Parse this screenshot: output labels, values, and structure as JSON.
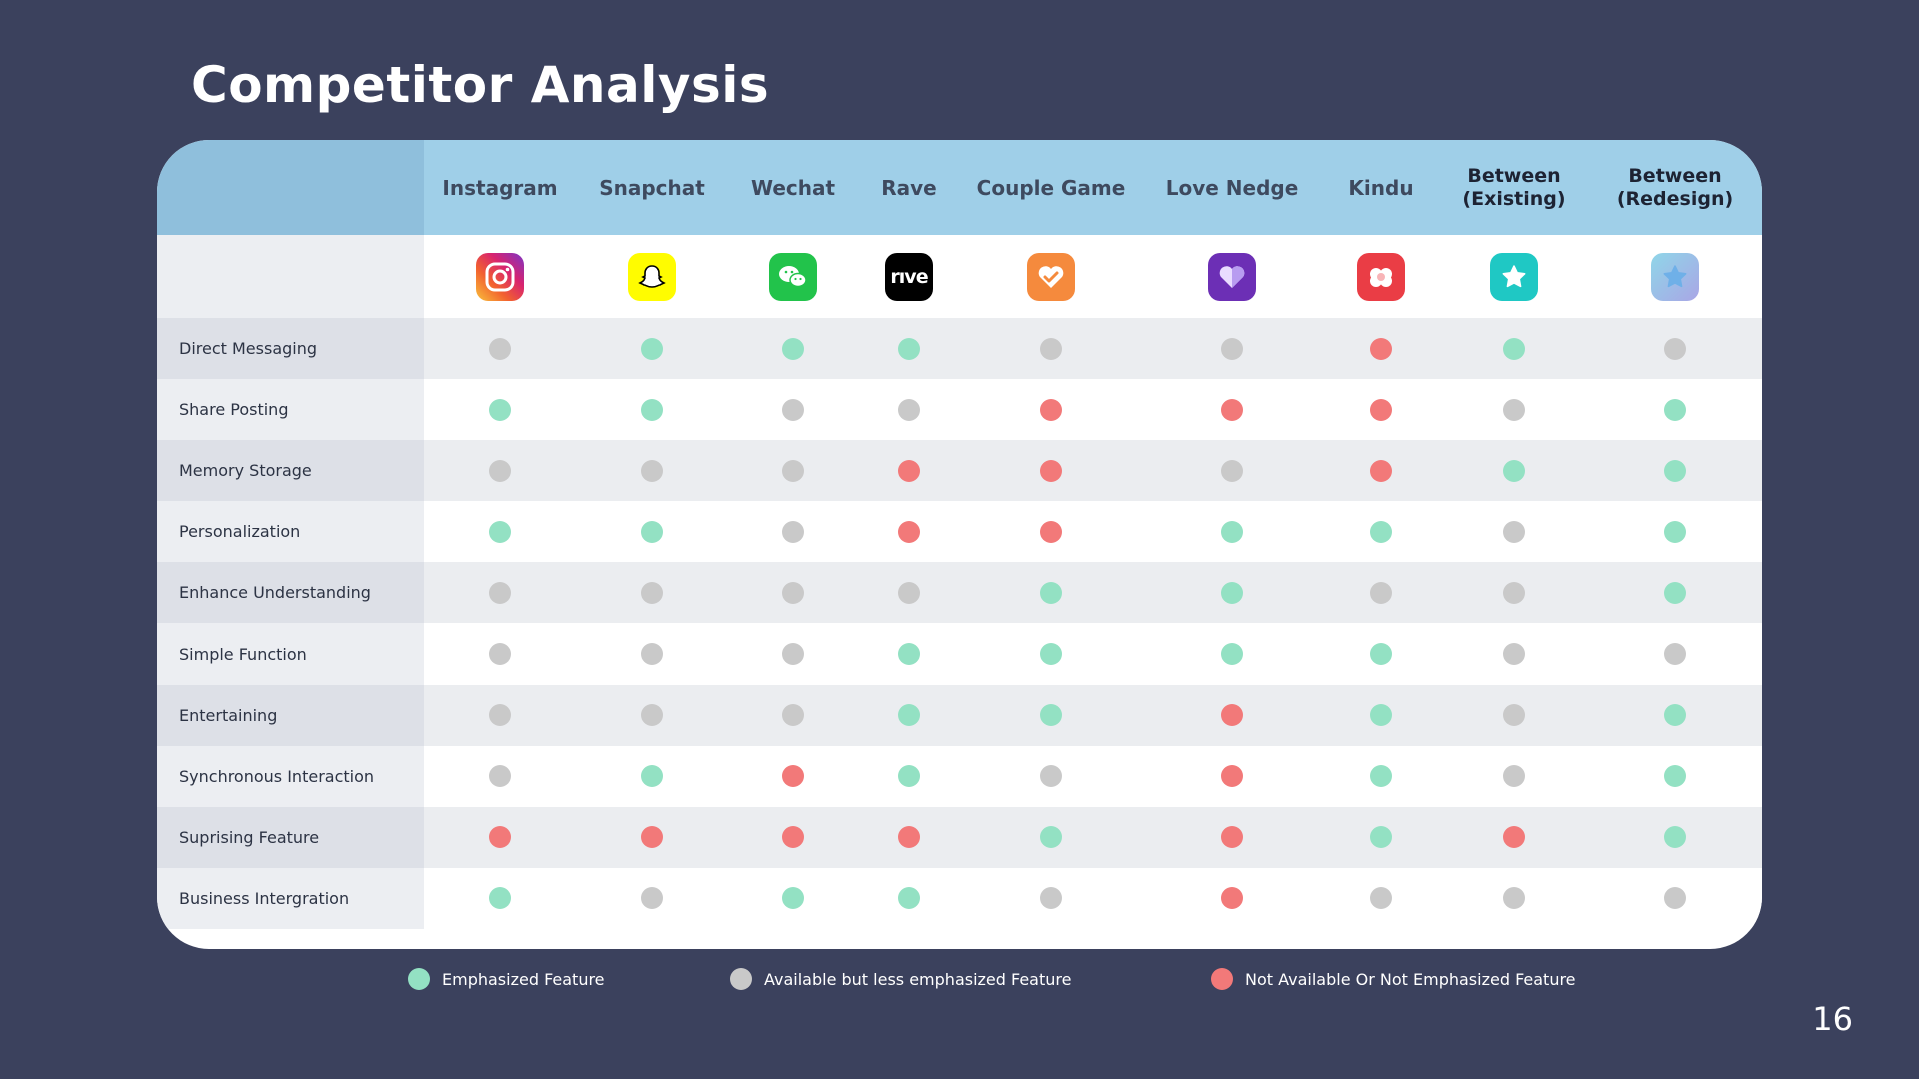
{
  "title": "Competitor Analysis",
  "page_number": "16",
  "apps": [
    {
      "name": "Instagram",
      "icon": "instagram-icon"
    },
    {
      "name": "Snapchat",
      "icon": "snapchat-icon"
    },
    {
      "name": "Wechat",
      "icon": "wechat-icon"
    },
    {
      "name": "Rave",
      "icon": "rave-icon",
      "icon_text": "rıve"
    },
    {
      "name": "Couple Game",
      "icon": "couple-game-icon"
    },
    {
      "name": "Love Nedge",
      "icon": "love-nedge-icon"
    },
    {
      "name": "Kindu",
      "icon": "kindu-icon"
    },
    {
      "name": "Between\n(Existing)",
      "icon": "between-existing-icon"
    },
    {
      "name": "Between\n(Redesign)",
      "icon": "between-redesign-icon"
    }
  ],
  "features": [
    {
      "label": "Direct Messaging",
      "values": [
        "y",
        "g",
        "g",
        "g",
        "y",
        "y",
        "r",
        "g",
        "y"
      ]
    },
    {
      "label": "Share Posting",
      "values": [
        "g",
        "g",
        "y",
        "y",
        "r",
        "r",
        "r",
        "y",
        "g"
      ]
    },
    {
      "label": "Memory Storage",
      "values": [
        "y",
        "y",
        "y",
        "r",
        "r",
        "y",
        "r",
        "g",
        "g"
      ]
    },
    {
      "label": "Personalization",
      "values": [
        "g",
        "g",
        "y",
        "r",
        "r",
        "g",
        "g",
        "y",
        "g"
      ]
    },
    {
      "label": "Enhance Understanding",
      "values": [
        "y",
        "y",
        "y",
        "y",
        "g",
        "g",
        "y",
        "y",
        "g"
      ]
    },
    {
      "label": "Simple Function",
      "values": [
        "y",
        "y",
        "y",
        "g",
        "g",
        "g",
        "g",
        "y",
        "y"
      ]
    },
    {
      "label": "Entertaining",
      "values": [
        "y",
        "y",
        "y",
        "g",
        "g",
        "r",
        "g",
        "y",
        "g"
      ]
    },
    {
      "label": "Synchronous Interaction",
      "values": [
        "y",
        "g",
        "r",
        "g",
        "y",
        "r",
        "g",
        "y",
        "g"
      ]
    },
    {
      "label": "Suprising Feature",
      "values": [
        "r",
        "r",
        "r",
        "r",
        "g",
        "r",
        "g",
        "r",
        "g"
      ]
    },
    {
      "label": "Business Intergration",
      "values": [
        "g",
        "y",
        "g",
        "g",
        "y",
        "r",
        "y",
        "y",
        "y"
      ]
    }
  ],
  "legend": [
    {
      "key": "g",
      "label": "Emphasized Feature",
      "color": "#93e1c3"
    },
    {
      "key": "y",
      "label": "Available but less emphasized Feature",
      "color": "#c9c9c9"
    },
    {
      "key": "r",
      "label": "Not Available Or Not Emphasized Feature",
      "color": "#f27979"
    }
  ],
  "colors": {
    "background": "#3b415d",
    "header": "#9fcfe8",
    "emphasized": "#93e1c3",
    "less_emphasized": "#c9c9c9",
    "not_available": "#f27979"
  }
}
